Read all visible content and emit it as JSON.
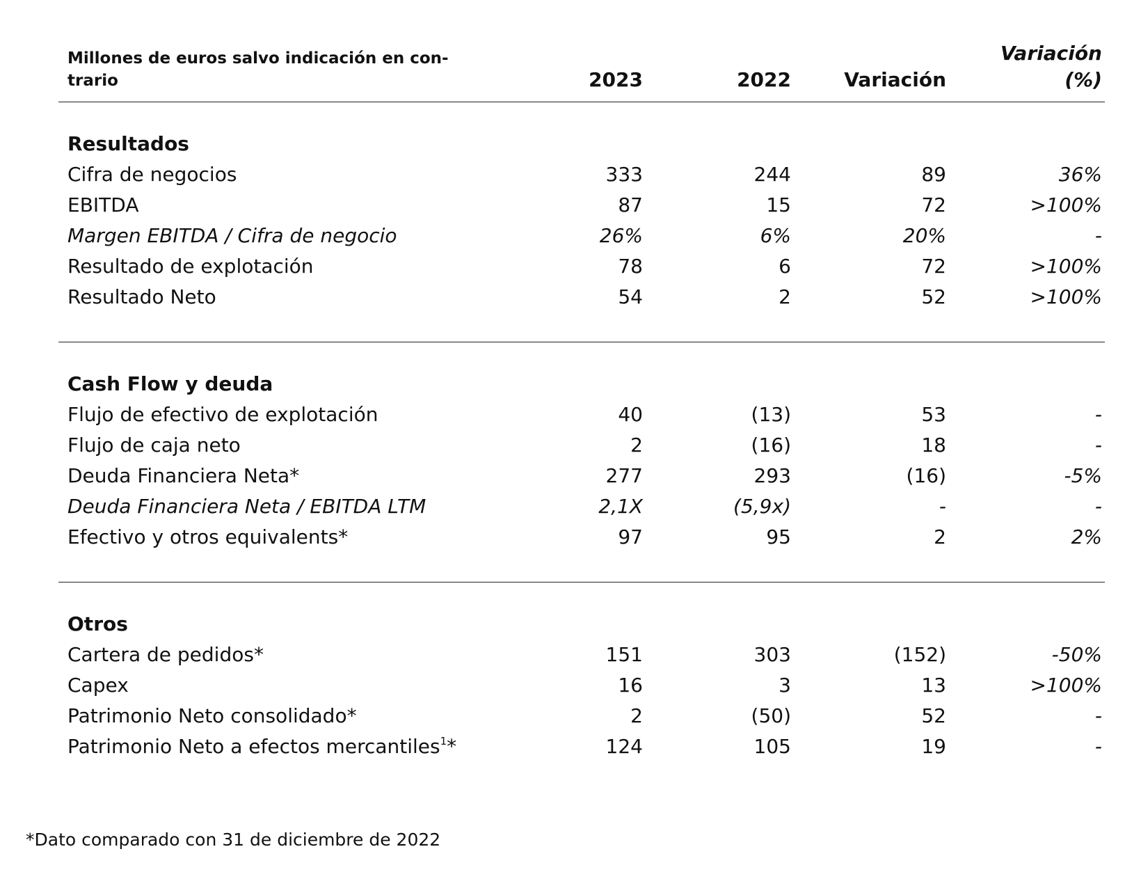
{
  "header": {
    "label": "Millones de euros salvo indicación en con-trario",
    "label_line1": "Millones de euros salvo indicación en con-",
    "label_line2": "trario",
    "col_2023": "2023",
    "col_2022": "2022",
    "col_variacion": "Variación",
    "col_variacion_pct_line1": "Variación",
    "col_variacion_pct_line2": "(%)"
  },
  "sections": [
    {
      "title": "Resultados",
      "rows": [
        {
          "label": "Cifra de negocios",
          "v2023": "333",
          "v2022": "244",
          "var": "89",
          "pct": "36%"
        },
        {
          "label": "EBITDA",
          "v2023": "87",
          "v2022": "15",
          "var": "72",
          "pct": ">100%"
        },
        {
          "label": "Margen EBITDA / Cifra de negocio",
          "v2023": "26%",
          "v2022": "6%",
          "var": "20%",
          "pct": "-"
        },
        {
          "label": "Resultado de explotación",
          "v2023": "78",
          "v2022": "6",
          "var": "72",
          "pct": ">100%"
        },
        {
          "label": "Resultado Neto",
          "v2023": "54",
          "v2022": "2",
          "var": "52",
          "pct": ">100%"
        }
      ]
    },
    {
      "title": "Cash Flow y deuda",
      "rows": [
        {
          "label": "Flujo de efectivo de explotación",
          "v2023": "40",
          "v2022": "(13)",
          "var": "53",
          "pct": "-"
        },
        {
          "label": "Flujo de caja neto",
          "v2023": "2",
          "v2022": "(16)",
          "var": "18",
          "pct": "-"
        },
        {
          "label": "Deuda Financiera Neta*",
          "v2023": "277",
          "v2022": "293",
          "var": "(16)",
          "pct": "-5%"
        },
        {
          "label": "Deuda Financiera Neta / EBITDA LTM",
          "v2023": "2,1X",
          "v2022": "(5,9x)",
          "var": "-",
          "pct": "-"
        },
        {
          "label": "Efectivo y otros equivalents*",
          "v2023": "97",
          "v2022": "95",
          "var": "2",
          "pct": "2%"
        }
      ]
    },
    {
      "title": "Otros",
      "rows": [
        {
          "label": "Cartera de pedidos*",
          "v2023": "151",
          "v2022": "303",
          "var": "(152)",
          "pct": "-50%"
        },
        {
          "label": "Capex",
          "v2023": "16",
          "v2022": "3",
          "var": "13",
          "pct": ">100%"
        },
        {
          "label": "Patrimonio Neto consolidado*",
          "v2023": "2",
          "v2022": "(50)",
          "var": "52",
          "pct": "-"
        },
        {
          "label": "Patrimonio Neto a efectos mercantiles",
          "label_sup": "1",
          "label_suffix": "*",
          "v2023": "124",
          "v2022": "105",
          "var": "19",
          "pct": "-"
        }
      ]
    }
  ],
  "footnote": "*Dato comparado con 31 de diciembre de 2022"
}
